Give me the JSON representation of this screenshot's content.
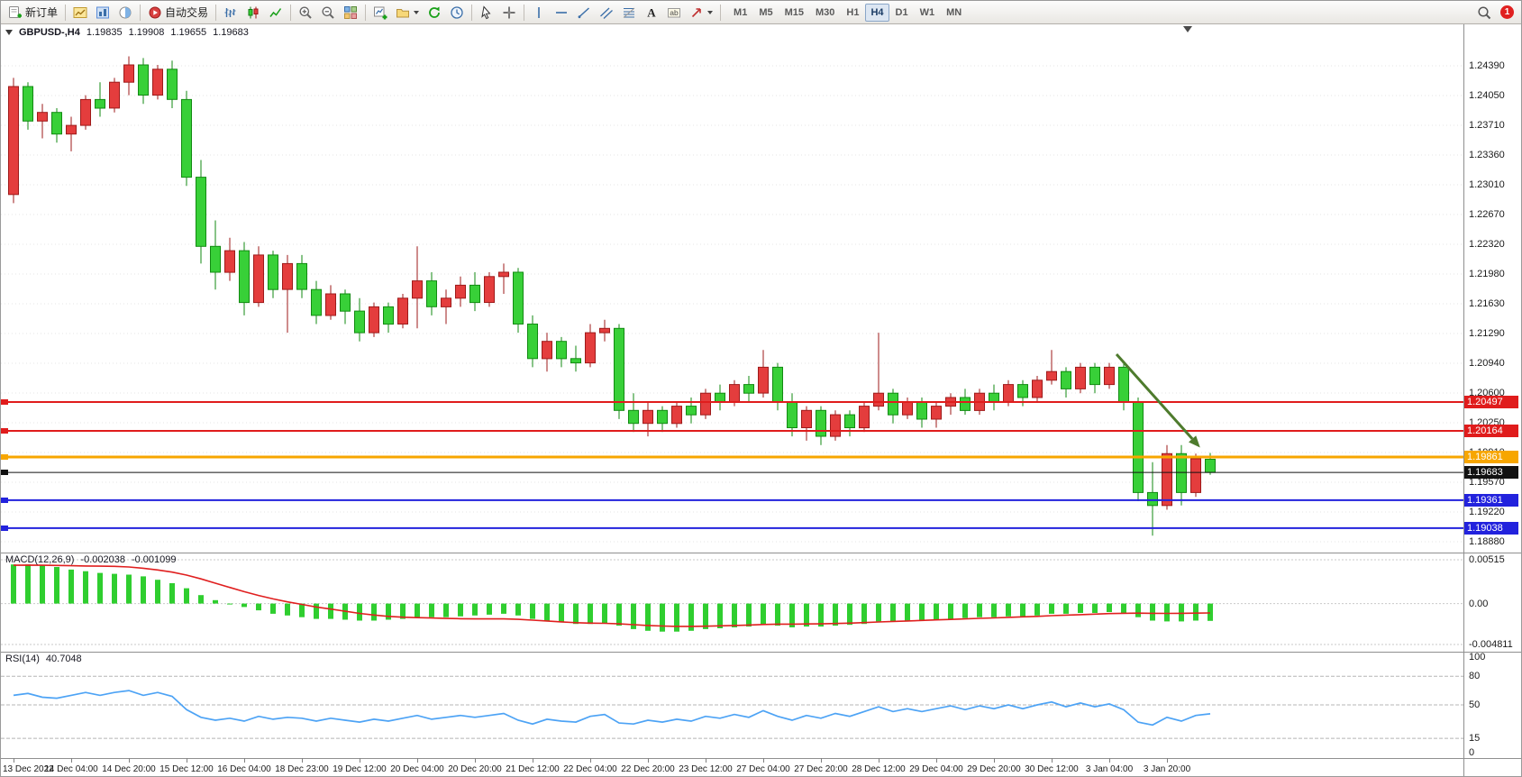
{
  "toolbar": {
    "groups": [
      {
        "buttons": [
          {
            "name": "new-order",
            "label": "新订单",
            "icon": "new-order-icon"
          }
        ]
      },
      {
        "buttons": [
          {
            "name": "charts",
            "icon": "charts-icon"
          },
          {
            "name": "navigator",
            "icon": "navigator-icon"
          },
          {
            "name": "data-window",
            "icon": "data-window-icon"
          }
        ]
      },
      {
        "buttons": [
          {
            "name": "auto-trading",
            "label": "自动交易",
            "icon": "auto-trading-icon"
          }
        ]
      },
      {
        "buttons": [
          {
            "name": "bar-chart",
            "icon": "bar-chart-icon"
          },
          {
            "name": "candlestick-chart",
            "icon": "candlestick-icon"
          },
          {
            "name": "line-chart",
            "icon": "line-chart-icon"
          }
        ]
      },
      {
        "buttons": [
          {
            "name": "zoom-in",
            "icon": "zoom-in-icon"
          },
          {
            "name": "zoom-out",
            "icon": "zoom-out-icon"
          },
          {
            "name": "tile-windows",
            "icon": "tile-windows-icon"
          }
        ]
      },
      {
        "buttons": [
          {
            "name": "new-chart",
            "icon": "new-chart-icon"
          },
          {
            "name": "profiles",
            "icon": "profiles-icon",
            "dropdown": true
          },
          {
            "name": "auto-scroll",
            "icon": "auto-scroll-icon"
          },
          {
            "name": "chart-shift",
            "icon": "chart-shift-icon"
          }
        ]
      },
      {
        "buttons": [
          {
            "name": "cursor",
            "icon": "cursor-icon"
          },
          {
            "name": "crosshair",
            "icon": "crosshair-icon"
          }
        ]
      },
      {
        "buttons": [
          {
            "name": "vertical-line",
            "icon": "vline-icon"
          },
          {
            "name": "horizontal-line",
            "icon": "hline-icon"
          },
          {
            "name": "trendline",
            "icon": "trendline-icon"
          },
          {
            "name": "equidistant-channel",
            "icon": "channel-icon"
          },
          {
            "name": "fibonacci-retracement",
            "icon": "fibonacci-icon"
          },
          {
            "name": "text",
            "icon": "text-icon"
          },
          {
            "name": "text-label",
            "icon": "label-icon"
          },
          {
            "name": "arrows",
            "icon": "arrows-icon",
            "dropdown": true
          }
        ]
      }
    ],
    "timeframes": {
      "items": [
        "M1",
        "M5",
        "M15",
        "M30",
        "H1",
        "H4",
        "D1",
        "W1",
        "MN"
      ],
      "active": "H4"
    },
    "notification_count": "1"
  },
  "chart": {
    "header": {
      "symbol_period": "GBPUSD-,H4",
      "open": "1.19835",
      "high": "1.19908",
      "low": "1.19655",
      "close": "1.19683"
    }
  },
  "chart_data": [
    {
      "type": "candlestick",
      "symbol": "GBPUSD-",
      "period": "H4",
      "bull_color": "#e43d3d",
      "bull_border": "#9e1a1a",
      "bear_color": "#38d038",
      "bear_border": "#128a12",
      "y_ticks": [
        "1.24390",
        "1.24050",
        "1.23710",
        "1.23360",
        "1.23010",
        "1.22670",
        "1.22320",
        "1.21980",
        "1.21630",
        "1.21290",
        "1.20940",
        "1.20600",
        "1.20250",
        "1.19910",
        "1.19570",
        "1.19220",
        "1.18880"
      ],
      "x_ticks": [
        "13 Dec 2022",
        "14 Dec 04:00",
        "14 Dec 20:00",
        "15 Dec 12:00",
        "16 Dec 04:00",
        "18 Dec 23:00",
        "19 Dec 12:00",
        "20 Dec 04:00",
        "20 Dec 20:00",
        "21 Dec 12:00",
        "22 Dec 04:00",
        "22 Dec 20:00",
        "23 Dec 12:00",
        "27 Dec 04:00",
        "27 Dec 20:00",
        "28 Dec 12:00",
        "29 Dec 04:00",
        "29 Dec 20:00",
        "30 Dec 12:00",
        "3 Jan 04:00",
        "3 Jan 20:00"
      ],
      "x_tick_every": 4,
      "ohlc": [
        [
          1.229,
          1.2425,
          1.228,
          1.2415
        ],
        [
          1.2415,
          1.242,
          1.2365,
          1.2375
        ],
        [
          1.2375,
          1.2395,
          1.2355,
          1.2385
        ],
        [
          1.2385,
          1.239,
          1.235,
          1.236
        ],
        [
          1.236,
          1.238,
          1.234,
          1.237
        ],
        [
          1.237,
          1.2405,
          1.2365,
          1.24
        ],
        [
          1.24,
          1.242,
          1.238,
          1.239
        ],
        [
          1.239,
          1.2425,
          1.2385,
          1.242
        ],
        [
          1.242,
          1.245,
          1.2405,
          1.244
        ],
        [
          1.244,
          1.2448,
          1.2395,
          1.2405
        ],
        [
          1.2405,
          1.244,
          1.24,
          1.2435
        ],
        [
          1.2435,
          1.2445,
          1.239,
          1.24
        ],
        [
          1.24,
          1.241,
          1.23,
          1.231
        ],
        [
          1.231,
          1.233,
          1.221,
          1.223
        ],
        [
          1.223,
          1.226,
          1.218,
          1.22
        ],
        [
          1.22,
          1.224,
          1.219,
          1.2225
        ],
        [
          1.2225,
          1.2235,
          1.215,
          1.2165
        ],
        [
          1.2165,
          1.223,
          1.216,
          1.222
        ],
        [
          1.222,
          1.2225,
          1.217,
          1.218
        ],
        [
          1.218,
          1.222,
          1.213,
          1.221
        ],
        [
          1.221,
          1.222,
          1.217,
          1.218
        ],
        [
          1.218,
          1.219,
          1.214,
          1.215
        ],
        [
          1.215,
          1.2185,
          1.2145,
          1.2175
        ],
        [
          1.2175,
          1.218,
          1.214,
          1.2155
        ],
        [
          1.2155,
          1.217,
          1.212,
          1.213
        ],
        [
          1.213,
          1.2165,
          1.2125,
          1.216
        ],
        [
          1.216,
          1.2165,
          1.213,
          1.214
        ],
        [
          1.214,
          1.2175,
          1.2135,
          1.217
        ],
        [
          1.217,
          1.223,
          1.2135,
          1.219
        ],
        [
          1.219,
          1.22,
          1.215,
          1.216
        ],
        [
          1.216,
          1.218,
          1.214,
          1.217
        ],
        [
          1.217,
          1.2195,
          1.216,
          1.2185
        ],
        [
          1.2185,
          1.22,
          1.2155,
          1.2165
        ],
        [
          1.2165,
          1.22,
          1.216,
          1.2195
        ],
        [
          1.2195,
          1.221,
          1.2175,
          1.22
        ],
        [
          1.22,
          1.2205,
          1.213,
          1.214
        ],
        [
          1.214,
          1.215,
          1.209,
          1.21
        ],
        [
          1.21,
          1.213,
          1.2085,
          1.212
        ],
        [
          1.212,
          1.2125,
          1.209,
          1.21
        ],
        [
          1.21,
          1.2115,
          1.2085,
          1.2095
        ],
        [
          1.2095,
          1.214,
          1.209,
          1.213
        ],
        [
          1.213,
          1.2145,
          1.212,
          1.2135
        ],
        [
          1.2135,
          1.214,
          1.203,
          1.204
        ],
        [
          1.204,
          1.206,
          1.2015,
          1.2025
        ],
        [
          1.2025,
          1.205,
          1.201,
          1.204
        ],
        [
          1.204,
          1.2045,
          1.2015,
          1.2025
        ],
        [
          1.2025,
          1.205,
          1.202,
          1.2045
        ],
        [
          1.2045,
          1.2055,
          1.2025,
          1.2035
        ],
        [
          1.2035,
          1.2065,
          1.203,
          1.206
        ],
        [
          1.206,
          1.207,
          1.204,
          1.205
        ],
        [
          1.205,
          1.2075,
          1.2045,
          1.207
        ],
        [
          1.207,
          1.208,
          1.205,
          1.206
        ],
        [
          1.206,
          1.211,
          1.2055,
          1.209
        ],
        [
          1.209,
          1.2095,
          1.204,
          1.205
        ],
        [
          1.205,
          1.206,
          1.201,
          1.202
        ],
        [
          1.202,
          1.2045,
          1.2005,
          1.204
        ],
        [
          1.204,
          1.2045,
          1.2,
          1.201
        ],
        [
          1.201,
          1.204,
          1.2005,
          1.2035
        ],
        [
          1.2035,
          1.204,
          1.201,
          1.202
        ],
        [
          1.202,
          1.205,
          1.2015,
          1.2045
        ],
        [
          1.2045,
          1.213,
          1.204,
          1.206
        ],
        [
          1.206,
          1.2065,
          1.2025,
          1.2035
        ],
        [
          1.2035,
          1.2055,
          1.203,
          1.205
        ],
        [
          1.205,
          1.2055,
          1.202,
          1.203
        ],
        [
          1.203,
          1.205,
          1.202,
          1.2045
        ],
        [
          1.2045,
          1.206,
          1.2035,
          1.2055
        ],
        [
          1.2055,
          1.2065,
          1.2035,
          1.204
        ],
        [
          1.204,
          1.2065,
          1.2035,
          1.206
        ],
        [
          1.206,
          1.207,
          1.204,
          1.205
        ],
        [
          1.205,
          1.2075,
          1.2045,
          1.207
        ],
        [
          1.207,
          1.2075,
          1.2045,
          1.2055
        ],
        [
          1.2055,
          1.208,
          1.205,
          1.2075
        ],
        [
          1.2075,
          1.211,
          1.207,
          1.2085
        ],
        [
          1.2085,
          1.209,
          1.2055,
          1.2065
        ],
        [
          1.2065,
          1.2095,
          1.206,
          1.209
        ],
        [
          1.209,
          1.2095,
          1.206,
          1.207
        ],
        [
          1.207,
          1.2095,
          1.2065,
          1.209
        ],
        [
          1.209,
          1.2094,
          1.204,
          1.205
        ],
        [
          1.205,
          1.2055,
          1.1935,
          1.1945
        ],
        [
          1.1945,
          1.198,
          1.1895,
          1.193
        ],
        [
          1.193,
          1.2,
          1.1925,
          1.199
        ],
        [
          1.199,
          1.2,
          1.193,
          1.1945
        ],
        [
          1.1945,
          1.199,
          1.194,
          1.1984
        ],
        [
          1.19835,
          1.19908,
          1.19655,
          1.19683
        ]
      ],
      "hlines": [
        {
          "price": 1.20497,
          "label": "1.20497",
          "color": "#e01c1c",
          "width": 2
        },
        {
          "price": 1.20164,
          "label": "1.20164",
          "color": "#e01c1c",
          "width": 2
        },
        {
          "price": 1.19861,
          "label": "1.19861",
          "color": "#f7a600",
          "width": 3
        },
        {
          "price": 1.19683,
          "label": "1.19683",
          "color": "#111111",
          "width": 1,
          "is_current": true
        },
        {
          "price": 1.19361,
          "label": "1.19361",
          "color": "#2222dd",
          "width": 2
        },
        {
          "price": 1.19038,
          "label": "1.19038",
          "color": "#2222dd",
          "width": 2
        }
      ],
      "annotations": [
        {
          "type": "arrow",
          "from_index": 76.5,
          "from_price": 1.2105,
          "to_index": 82.3,
          "to_price": 1.1997,
          "color": "#4e7b2d"
        }
      ]
    },
    {
      "type": "macd",
      "title": "MACD(12,26,9)",
      "value_main": "-0.002038",
      "value_signal": "-0.001099",
      "y_ticks": [
        "0.00515",
        "0.00",
        "-0.004811"
      ],
      "y_range": [
        0.00515,
        -0.004811
      ],
      "hist_color": "#2fce2f",
      "signal_color": "#e01f1f",
      "values": [
        0.0046,
        0.0046,
        0.0045,
        0.0043,
        0.004,
        0.0038,
        0.0036,
        0.0035,
        0.0034,
        0.0032,
        0.0028,
        0.0024,
        0.0018,
        0.001,
        0.0004,
        0.0,
        -0.0004,
        -0.0008,
        -0.0012,
        -0.0014,
        -0.0016,
        -0.0018,
        -0.0018,
        -0.0019,
        -0.002,
        -0.002,
        -0.0019,
        -0.0018,
        -0.0016,
        -0.0016,
        -0.0016,
        -0.0015,
        -0.0014,
        -0.0013,
        -0.0012,
        -0.0014,
        -0.0018,
        -0.002,
        -0.0022,
        -0.0024,
        -0.0024,
        -0.0023,
        -0.0026,
        -0.003,
        -0.0032,
        -0.0033,
        -0.0033,
        -0.0032,
        -0.003,
        -0.0029,
        -0.0028,
        -0.0027,
        -0.0025,
        -0.0026,
        -0.0028,
        -0.0027,
        -0.0027,
        -0.0026,
        -0.0025,
        -0.0024,
        -0.0021,
        -0.0021,
        -0.002,
        -0.002,
        -0.0019,
        -0.0018,
        -0.0017,
        -0.0016,
        -0.0016,
        -0.0015,
        -0.0015,
        -0.0014,
        -0.0012,
        -0.0012,
        -0.0011,
        -0.0011,
        -0.001,
        -0.0011,
        -0.0016,
        -0.002,
        -0.0021,
        -0.0021,
        -0.002,
        -0.002038
      ],
      "signal": [
        0.0045,
        0.00452,
        0.0045,
        0.00448,
        0.00445,
        0.00442,
        0.0044,
        0.00438,
        0.0043,
        0.00415,
        0.00395,
        0.0037,
        0.00335,
        0.0029,
        0.0024,
        0.0019,
        0.0014,
        0.00095,
        0.00055,
        0.0002,
        -0.0001,
        -0.0004,
        -0.00065,
        -0.0009,
        -0.00115,
        -0.00135,
        -0.0015,
        -0.0016,
        -0.00165,
        -0.0017,
        -0.00175,
        -0.00178,
        -0.0018,
        -0.0018,
        -0.0018,
        -0.00185,
        -0.00195,
        -0.00205,
        -0.00215,
        -0.00225,
        -0.0023,
        -0.00232,
        -0.00238,
        -0.00248,
        -0.00258,
        -0.00264,
        -0.00268,
        -0.00268,
        -0.00266,
        -0.00262,
        -0.00258,
        -0.00252,
        -0.00246,
        -0.00242,
        -0.00242,
        -0.0024,
        -0.00238,
        -0.00234,
        -0.0023,
        -0.00224,
        -0.00216,
        -0.0021,
        -0.00204,
        -0.00198,
        -0.00192,
        -0.00186,
        -0.0018,
        -0.00174,
        -0.00168,
        -0.00162,
        -0.00156,
        -0.0015,
        -0.00142,
        -0.00136,
        -0.0013,
        -0.00124,
        -0.00118,
        -0.00114,
        -0.00112,
        -0.00114,
        -0.00116,
        -0.00114,
        -0.00112,
        -0.001099
      ]
    },
    {
      "type": "line",
      "title": "RSI(14)",
      "value": "40.7048",
      "y_ticks": [
        "100",
        "80",
        "50",
        "15",
        "0"
      ],
      "y_range": [
        100,
        0
      ],
      "levels": [
        80,
        50,
        15
      ],
      "line_color": "#4da3f5",
      "values": [
        60,
        62,
        58,
        57,
        60,
        63,
        60,
        63,
        65,
        60,
        63,
        59,
        45,
        37,
        34,
        36,
        33,
        38,
        35,
        37,
        36,
        33,
        36,
        34,
        32,
        35,
        33,
        36,
        39,
        35,
        37,
        39,
        37,
        39,
        41,
        34,
        30,
        35,
        33,
        32,
        38,
        40,
        31,
        30,
        34,
        32,
        35,
        33,
        38,
        36,
        40,
        37,
        44,
        38,
        34,
        39,
        36,
        41,
        38,
        43,
        48,
        43,
        46,
        43,
        46,
        49,
        45,
        49,
        46,
        50,
        46,
        50,
        53,
        48,
        52,
        48,
        51,
        45,
        32,
        29,
        37,
        33,
        39,
        40.7
      ]
    }
  ]
}
